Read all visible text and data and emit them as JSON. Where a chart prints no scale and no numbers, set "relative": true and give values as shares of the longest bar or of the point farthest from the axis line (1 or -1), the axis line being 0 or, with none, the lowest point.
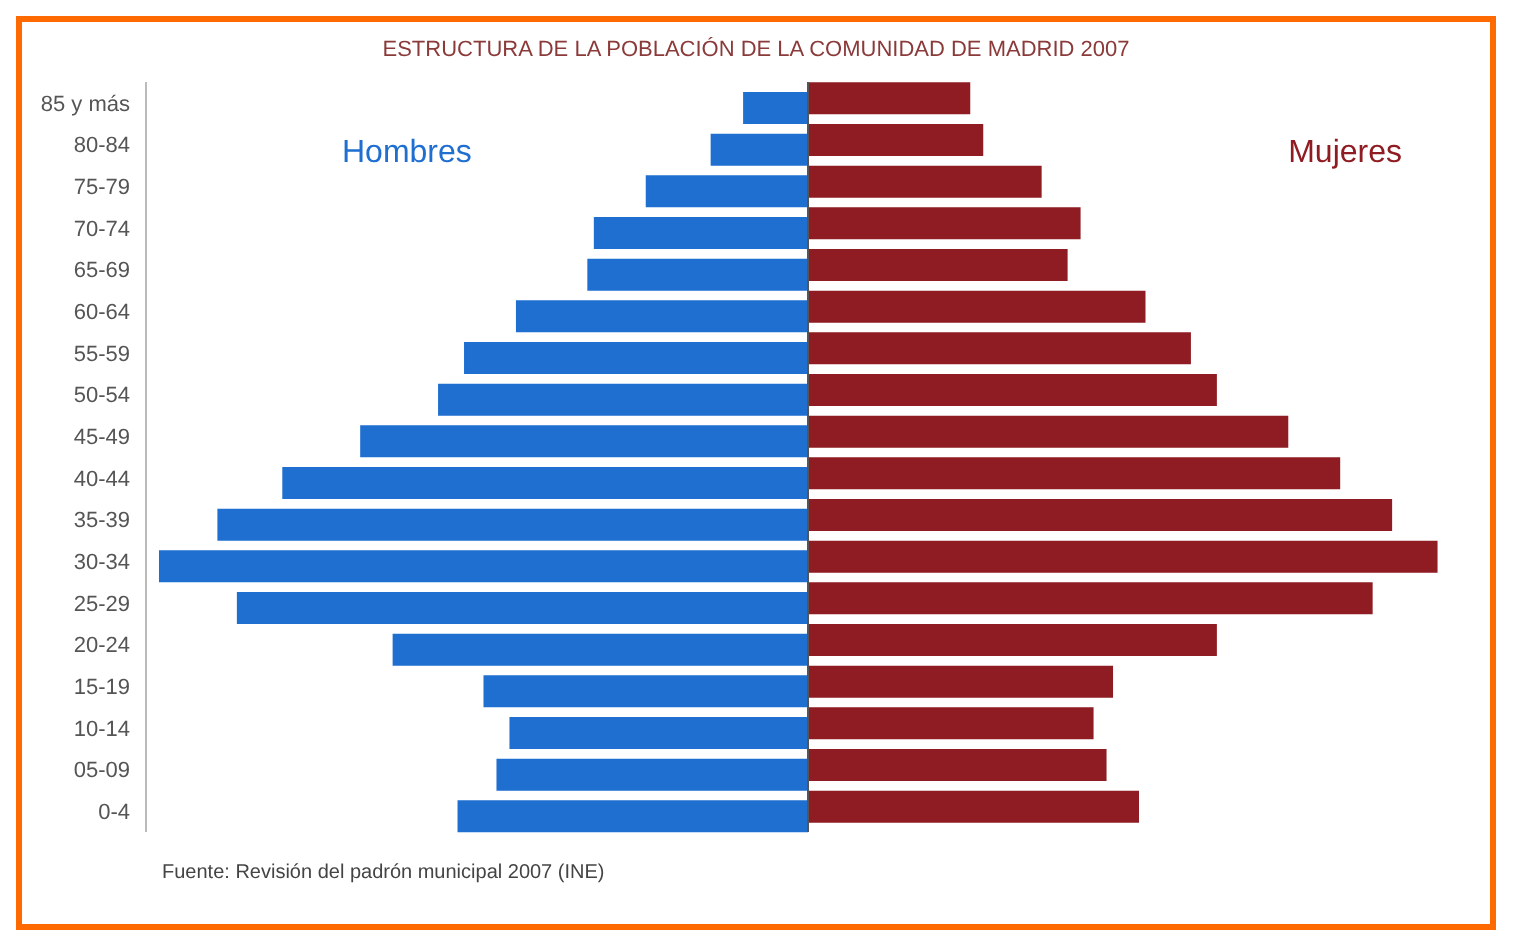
{
  "chart_data": {
    "type": "bar",
    "orientation": "horizontal",
    "relative": true,
    "title": "ESTRUCTURA DE LA POBLACIÓN DE LA COMUNIDAD DE MADRID 2007",
    "categories": [
      "85 y más",
      "80-84",
      "75-79",
      "70-74",
      "65-69",
      "60-64",
      "55-59",
      "50-54",
      "45-49",
      "40-44",
      "35-39",
      "30-34",
      "25-29",
      "20-24",
      "15-19",
      "10-14",
      "05-09",
      "0-4"
    ],
    "series": [
      {
        "name": "Hombres",
        "color": "#1f6fd1",
        "values": [
          -0.1,
          -0.15,
          -0.25,
          -0.33,
          -0.34,
          -0.45,
          -0.53,
          -0.57,
          -0.69,
          -0.81,
          -0.91,
          -1,
          -0.88,
          -0.64,
          -0.5,
          -0.46,
          -0.48,
          -0.54
        ]
      },
      {
        "name": "Mujeres",
        "color": "#8e1c22",
        "values": [
          0.25,
          0.27,
          0.36,
          0.42,
          0.4,
          0.52,
          0.59,
          0.63,
          0.74,
          0.82,
          0.9,
          0.97,
          0.87,
          0.63,
          0.47,
          0.44,
          0.46,
          0.51
        ]
      }
    ],
    "annotations": [
      "Fuente: Revisión del padrón municipal 2007 (INE)"
    ]
  }
}
